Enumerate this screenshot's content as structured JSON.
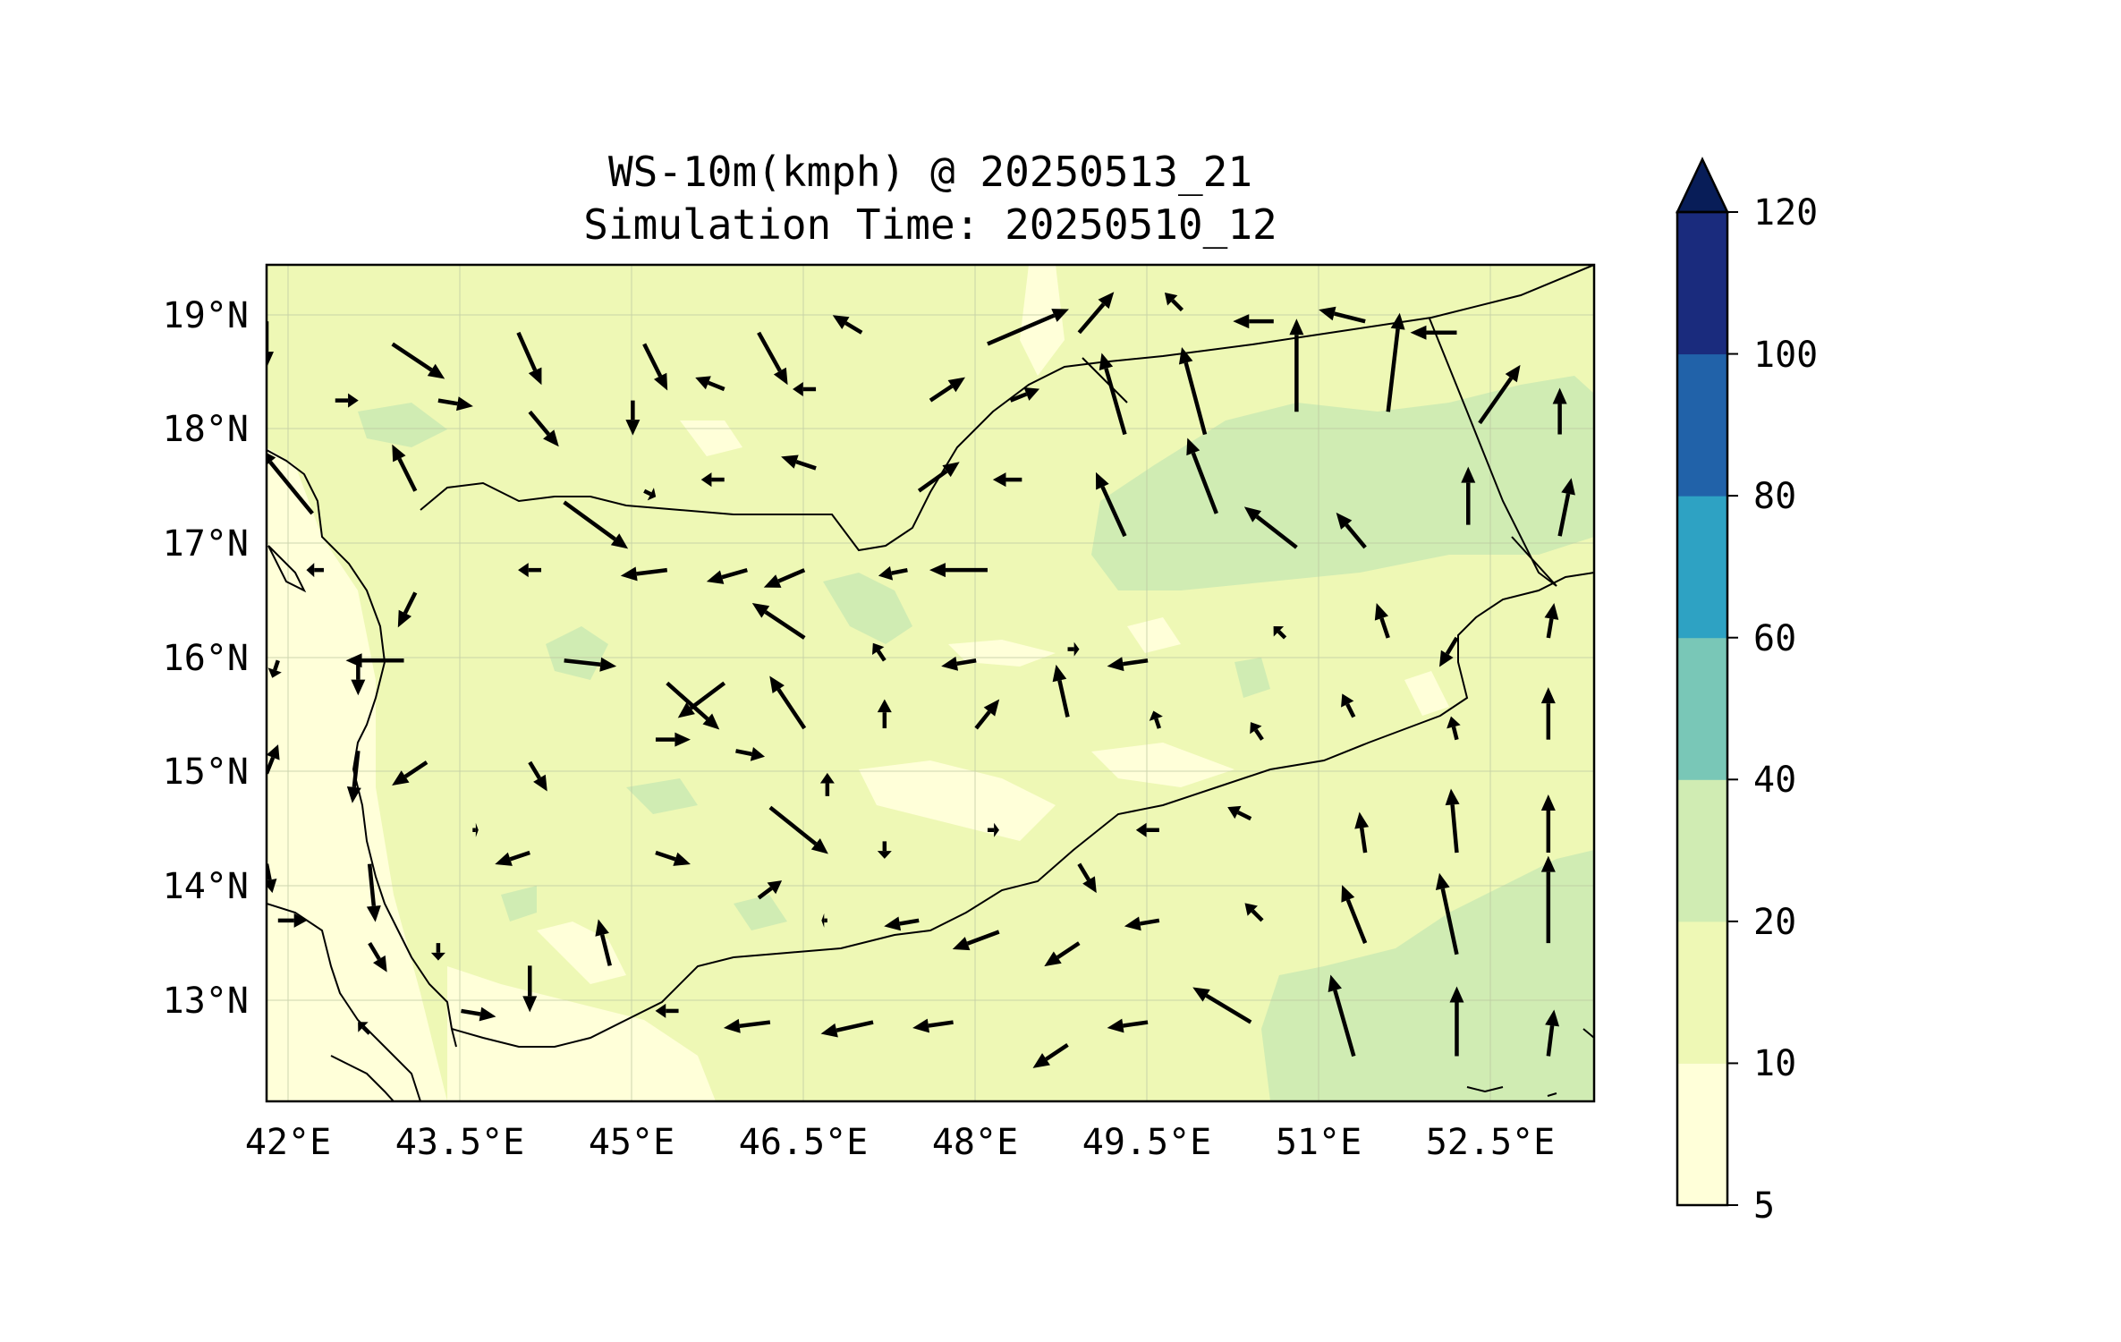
{
  "figure": {
    "title_line1": "WS-10m(kmph) @ 20250513_21",
    "title_line2": "Simulation Time: 20250510_12"
  },
  "map": {
    "lon_range": [
      42,
      53.6
    ],
    "lat_range": [
      12.1,
      19.5
    ],
    "x_ticks": [
      {
        "value": 42.0,
        "label": "42°E"
      },
      {
        "value": 43.5,
        "label": "43.5°E"
      },
      {
        "value": 45.0,
        "label": "45°E"
      },
      {
        "value": 46.5,
        "label": "46.5°E"
      },
      {
        "value": 48.0,
        "label": "48°E"
      },
      {
        "value": 49.5,
        "label": "49.5°E"
      },
      {
        "value": 51.0,
        "label": "51°E"
      },
      {
        "value": 52.5,
        "label": "52.5°E"
      }
    ],
    "y_ticks": [
      {
        "value": 19.0,
        "label": "19°N"
      },
      {
        "value": 18.0,
        "label": "18°N"
      },
      {
        "value": 17.0,
        "label": "17°N"
      },
      {
        "value": 16.0,
        "label": "16°N"
      },
      {
        "value": 15.0,
        "label": "15°N"
      },
      {
        "value": 14.0,
        "label": "14°N"
      },
      {
        "value": 13.0,
        "label": "13°N"
      }
    ],
    "grid": true,
    "fill_colors": {
      "5_10": "#ffffd9",
      "10_20": "#eef8b5",
      "20_40": "#d0ecb3",
      "line": "#000000",
      "arrow": "#000000"
    }
  },
  "colorbar": {
    "levels": [
      5,
      10,
      20,
      40,
      60,
      80,
      100,
      120
    ],
    "labels": [
      "5",
      "10",
      "20",
      "40",
      "60",
      "80",
      "100",
      "120"
    ],
    "colors": [
      "#ffffd9",
      "#eef8b5",
      "#d0ecb3",
      "#79c7b7",
      "#2ea2c3",
      "#2162a9",
      "#1a2b7d"
    ],
    "extend_color": "#081d58",
    "extend": "max"
  },
  "chart_data": {
    "type": "quiver",
    "variable": "WS-10m(kmph)",
    "grid_lon": [
      42.0,
      42.8,
      43.6,
      44.4,
      45.2,
      46.0,
      46.8,
      47.6,
      48.4,
      49.2,
      50.0,
      50.8,
      51.6,
      52.4,
      53.2
    ],
    "grid_lat": [
      19.0,
      18.2,
      17.4,
      16.6,
      15.8,
      15.0,
      14.2,
      13.4,
      12.6
    ],
    "vectors": [
      {
        "lon": 42.0,
        "lat": 19.0,
        "u": 0,
        "v": -8
      },
      {
        "lon": 43.1,
        "lat": 18.8,
        "u": 9,
        "v": -6
      },
      {
        "lon": 44.2,
        "lat": 18.9,
        "u": 4,
        "v": -9
      },
      {
        "lon": 45.3,
        "lat": 18.8,
        "u": 4,
        "v": -8
      },
      {
        "lon": 46.3,
        "lat": 18.9,
        "u": 5,
        "v": -9
      },
      {
        "lon": 47.2,
        "lat": 18.9,
        "u": -5,
        "v": 3
      },
      {
        "lon": 48.3,
        "lat": 18.8,
        "u": 14,
        "v": 6
      },
      {
        "lon": 49.1,
        "lat": 18.9,
        "u": 6,
        "v": 7
      },
      {
        "lon": 50.0,
        "lat": 19.1,
        "u": -3,
        "v": 3
      },
      {
        "lon": 50.8,
        "lat": 19.0,
        "u": -7,
        "v": 0
      },
      {
        "lon": 51.6,
        "lat": 19.0,
        "u": -8,
        "v": 2
      },
      {
        "lon": 52.4,
        "lat": 18.9,
        "u": -8,
        "v": 0
      },
      {
        "lon": 42.6,
        "lat": 18.3,
        "u": 4,
        "v": 0
      },
      {
        "lon": 43.5,
        "lat": 18.3,
        "u": 6,
        "v": -1
      },
      {
        "lon": 44.3,
        "lat": 18.2,
        "u": 5,
        "v": -6
      },
      {
        "lon": 45.2,
        "lat": 18.3,
        "u": 0,
        "v": -6
      },
      {
        "lon": 46.0,
        "lat": 18.4,
        "u": -5,
        "v": 2
      },
      {
        "lon": 46.8,
        "lat": 18.4,
        "u": -4,
        "v": 0
      },
      {
        "lon": 47.8,
        "lat": 18.3,
        "u": 6,
        "v": 4
      },
      {
        "lon": 48.5,
        "lat": 18.3,
        "u": 5,
        "v": 2
      },
      {
        "lon": 49.5,
        "lat": 18.0,
        "u": -4,
        "v": 14
      },
      {
        "lon": 50.2,
        "lat": 18.0,
        "u": -4,
        "v": 15
      },
      {
        "lon": 51.0,
        "lat": 18.2,
        "u": 0,
        "v": 16
      },
      {
        "lon": 51.8,
        "lat": 18.2,
        "u": 2,
        "v": 17
      },
      {
        "lon": 52.6,
        "lat": 18.1,
        "u": 7,
        "v": 10
      },
      {
        "lon": 53.3,
        "lat": 18.0,
        "u": 0,
        "v": 8
      },
      {
        "lon": 42.4,
        "lat": 17.3,
        "u": -9,
        "v": 11
      },
      {
        "lon": 43.3,
        "lat": 17.5,
        "u": -4,
        "v": 8
      },
      {
        "lon": 44.6,
        "lat": 17.4,
        "u": 11,
        "v": -8
      },
      {
        "lon": 45.3,
        "lat": 17.5,
        "u": 2,
        "v": -1
      },
      {
        "lon": 46.0,
        "lat": 17.6,
        "u": -4,
        "v": 0
      },
      {
        "lon": 46.8,
        "lat": 17.7,
        "u": -6,
        "v": 2
      },
      {
        "lon": 47.7,
        "lat": 17.5,
        "u": 7,
        "v": 5
      },
      {
        "lon": 48.6,
        "lat": 17.6,
        "u": -5,
        "v": 0
      },
      {
        "lon": 49.5,
        "lat": 17.1,
        "u": -5,
        "v": 11
      },
      {
        "lon": 50.3,
        "lat": 17.3,
        "u": -5,
        "v": 13
      },
      {
        "lon": 51.0,
        "lat": 17.0,
        "u": -9,
        "v": 7
      },
      {
        "lon": 51.6,
        "lat": 17.0,
        "u": -5,
        "v": 6
      },
      {
        "lon": 52.5,
        "lat": 17.2,
        "u": 0,
        "v": 10
      },
      {
        "lon": 53.3,
        "lat": 17.1,
        "u": 2,
        "v": 10
      },
      {
        "lon": 42.5,
        "lat": 16.8,
        "u": -3,
        "v": 0
      },
      {
        "lon": 43.3,
        "lat": 16.6,
        "u": -3,
        "v": -6
      },
      {
        "lon": 44.4,
        "lat": 16.8,
        "u": -4,
        "v": 0
      },
      {
        "lon": 45.5,
        "lat": 16.8,
        "u": -8,
        "v": -1
      },
      {
        "lon": 46.2,
        "lat": 16.8,
        "u": -7,
        "v": -2
      },
      {
        "lon": 46.7,
        "lat": 16.8,
        "u": -7,
        "v": -3
      },
      {
        "lon": 47.6,
        "lat": 16.8,
        "u": -5,
        "v": -1
      },
      {
        "lon": 48.3,
        "lat": 16.8,
        "u": -10,
        "v": 0
      },
      {
        "lon": 51.8,
        "lat": 16.2,
        "u": -2,
        "v": 6
      },
      {
        "lon": 52.4,
        "lat": 16.2,
        "u": -3,
        "v": -5
      },
      {
        "lon": 53.2,
        "lat": 16.2,
        "u": 1,
        "v": 6
      },
      {
        "lon": 42.1,
        "lat": 16.0,
        "u": -1,
        "v": -3
      },
      {
        "lon": 42.8,
        "lat": 16.0,
        "u": 0,
        "v": -6
      },
      {
        "lon": 43.2,
        "lat": 16.0,
        "u": -10,
        "v": 0
      },
      {
        "lon": 44.6,
        "lat": 16.0,
        "u": 9,
        "v": -1
      },
      {
        "lon": 45.5,
        "lat": 15.8,
        "u": 9,
        "v": -8
      },
      {
        "lon": 46.0,
        "lat": 15.8,
        "u": -8,
        "v": -6
      },
      {
        "lon": 46.7,
        "lat": 16.2,
        "u": -9,
        "v": 6
      },
      {
        "lon": 47.4,
        "lat": 16.0,
        "u": -2,
        "v": 3
      },
      {
        "lon": 48.2,
        "lat": 16.0,
        "u": -6,
        "v": -1
      },
      {
        "lon": 49.0,
        "lat": 16.1,
        "u": 2,
        "v": 0
      },
      {
        "lon": 49.7,
        "lat": 16.0,
        "u": -7,
        "v": -1
      },
      {
        "lon": 50.9,
        "lat": 16.2,
        "u": -2,
        "v": 2
      },
      {
        "lon": 42.0,
        "lat": 15.0,
        "u": 2,
        "v": 5
      },
      {
        "lon": 42.8,
        "lat": 15.2,
        "u": -1,
        "v": -9
      },
      {
        "lon": 43.4,
        "lat": 15.1,
        "u": -6,
        "v": -4
      },
      {
        "lon": 44.3,
        "lat": 15.1,
        "u": 3,
        "v": -5
      },
      {
        "lon": 45.4,
        "lat": 15.3,
        "u": 6,
        "v": 0
      },
      {
        "lon": 46.1,
        "lat": 15.2,
        "u": 5,
        "v": -1
      },
      {
        "lon": 46.7,
        "lat": 15.4,
        "u": -6,
        "v": 9
      },
      {
        "lon": 47.4,
        "lat": 15.4,
        "u": 0,
        "v": 5
      },
      {
        "lon": 48.2,
        "lat": 15.4,
        "u": 4,
        "v": 5
      },
      {
        "lon": 49.0,
        "lat": 15.5,
        "u": -2,
        "v": 9
      },
      {
        "lon": 49.8,
        "lat": 15.4,
        "u": -1,
        "v": 3
      },
      {
        "lon": 50.7,
        "lat": 15.3,
        "u": -2,
        "v": 3
      },
      {
        "lon": 51.5,
        "lat": 15.5,
        "u": -2,
        "v": 4
      },
      {
        "lon": 52.4,
        "lat": 15.3,
        "u": -1,
        "v": 4
      },
      {
        "lon": 53.2,
        "lat": 15.3,
        "u": 0,
        "v": 9
      },
      {
        "lon": 42.0,
        "lat": 14.2,
        "u": 1,
        "v": -5
      },
      {
        "lon": 42.9,
        "lat": 14.2,
        "u": 1,
        "v": -10
      },
      {
        "lon": 43.8,
        "lat": 14.5,
        "u": 1,
        "v": 0
      },
      {
        "lon": 44.3,
        "lat": 14.3,
        "u": -6,
        "v": -2
      },
      {
        "lon": 45.4,
        "lat": 14.3,
        "u": 6,
        "v": -2
      },
      {
        "lon": 46.4,
        "lat": 14.7,
        "u": 10,
        "v": -8
      },
      {
        "lon": 46.9,
        "lat": 14.8,
        "u": 0,
        "v": 4
      },
      {
        "lon": 47.4,
        "lat": 14.4,
        "u": 0,
        "v": -3
      },
      {
        "lon": 48.3,
        "lat": 14.5,
        "u": 2,
        "v": 0
      },
      {
        "lon": 49.1,
        "lat": 14.2,
        "u": 3,
        "v": -5
      },
      {
        "lon": 49.8,
        "lat": 14.5,
        "u": -4,
        "v": 0
      },
      {
        "lon": 50.6,
        "lat": 14.6,
        "u": -4,
        "v": 2
      },
      {
        "lon": 51.6,
        "lat": 14.3,
        "u": -1,
        "v": 7
      },
      {
        "lon": 52.4,
        "lat": 14.3,
        "u": -1,
        "v": 11
      },
      {
        "lon": 53.2,
        "lat": 14.3,
        "u": 0,
        "v": 10
      },
      {
        "lon": 42.1,
        "lat": 13.7,
        "u": 5,
        "v": 0
      },
      {
        "lon": 42.9,
        "lat": 13.5,
        "u": 3,
        "v": -5
      },
      {
        "lon": 43.5,
        "lat": 13.5,
        "u": 0,
        "v": -3
      },
      {
        "lon": 44.3,
        "lat": 13.3,
        "u": 0,
        "v": -8
      },
      {
        "lon": 45.0,
        "lat": 13.3,
        "u": -2,
        "v": 8
      },
      {
        "lon": 46.3,
        "lat": 13.9,
        "u": 4,
        "v": 3
      },
      {
        "lon": 46.9,
        "lat": 13.7,
        "u": -1,
        "v": 0
      },
      {
        "lon": 47.7,
        "lat": 13.7,
        "u": -6,
        "v": -1
      },
      {
        "lon": 48.4,
        "lat": 13.6,
        "u": -8,
        "v": -3
      },
      {
        "lon": 49.1,
        "lat": 13.5,
        "u": -6,
        "v": -4
      },
      {
        "lon": 49.8,
        "lat": 13.7,
        "u": -6,
        "v": -1
      },
      {
        "lon": 50.7,
        "lat": 13.7,
        "u": -3,
        "v": 3
      },
      {
        "lon": 51.6,
        "lat": 13.5,
        "u": -4,
        "v": 10
      },
      {
        "lon": 52.4,
        "lat": 13.4,
        "u": -3,
        "v": 14
      },
      {
        "lon": 53.2,
        "lat": 13.5,
        "u": 0,
        "v": 15
      },
      {
        "lon": 42.9,
        "lat": 12.7,
        "u": -2,
        "v": 2
      },
      {
        "lon": 43.7,
        "lat": 12.9,
        "u": 6,
        "v": -1
      },
      {
        "lon": 45.6,
        "lat": 12.9,
        "u": -4,
        "v": 0
      },
      {
        "lon": 46.4,
        "lat": 12.8,
        "u": -8,
        "v": -1
      },
      {
        "lon": 47.3,
        "lat": 12.8,
        "u": -9,
        "v": -2
      },
      {
        "lon": 48.0,
        "lat": 12.8,
        "u": -7,
        "v": -1
      },
      {
        "lon": 49.0,
        "lat": 12.6,
        "u": -6,
        "v": -4
      },
      {
        "lon": 49.7,
        "lat": 12.8,
        "u": -7,
        "v": -1
      },
      {
        "lon": 50.6,
        "lat": 12.8,
        "u": -10,
        "v": 6
      },
      {
        "lon": 51.5,
        "lat": 12.5,
        "u": -4,
        "v": 14
      },
      {
        "lon": 52.4,
        "lat": 12.5,
        "u": 0,
        "v": 12
      },
      {
        "lon": 53.2,
        "lat": 12.5,
        "u": 1,
        "v": 8
      }
    ]
  }
}
